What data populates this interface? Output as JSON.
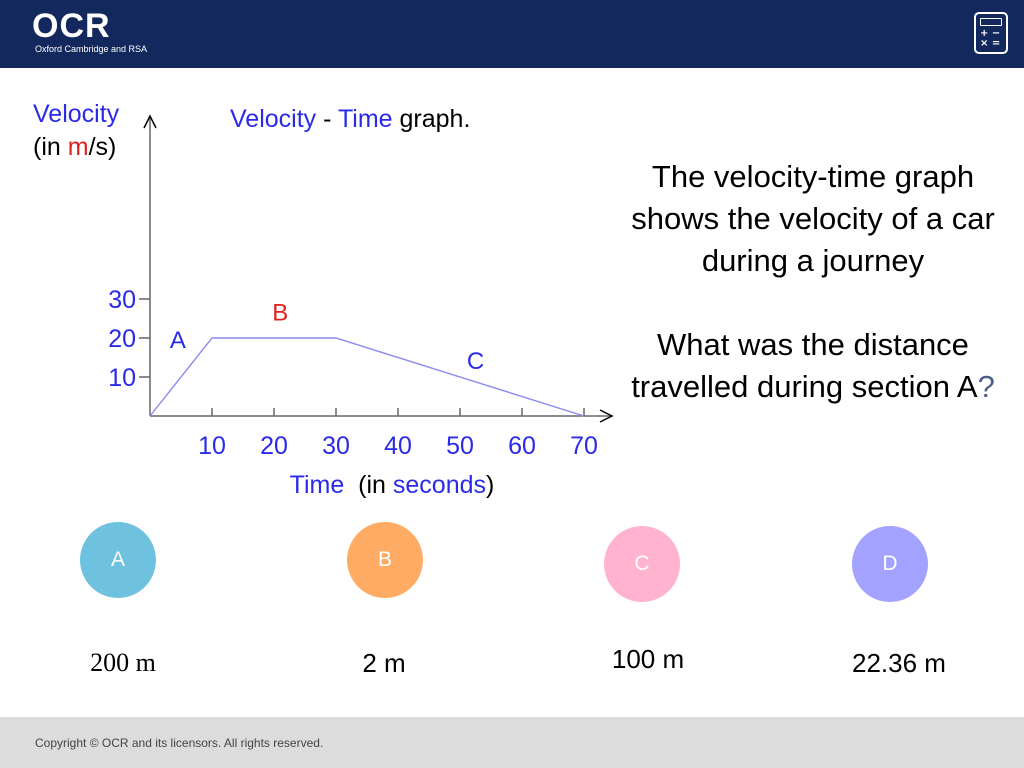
{
  "header": {
    "logo_main": "OCR",
    "logo_sub": "Oxford Cambridge and RSA",
    "calculator_icon": "calculator-icon",
    "calculator_keys": "+ −\n× ="
  },
  "chart_data": {
    "type": "line",
    "title_parts": [
      {
        "text": "Velocity",
        "color": "#2a2ae8"
      },
      {
        "text": " - ",
        "color": "#000000"
      },
      {
        "text": "Time",
        "color": "#2a2ae8"
      },
      {
        "text": " graph.",
        "color": "#000000"
      }
    ],
    "ylabel_line1": "Velocity",
    "ylabel_line2_parts": [
      {
        "text": "(in ",
        "color": "#000000"
      },
      {
        "text": "m",
        "color": "#e02020"
      },
      {
        "text": "/s)",
        "color": "#000000"
      }
    ],
    "xlabel_parts": [
      {
        "text": "Time",
        "color": "#2a2ae8"
      },
      {
        "text": "  (in ",
        "color": "#000000"
      },
      {
        "text": "seconds",
        "color": "#2a2ae8"
      },
      {
        "text": ")",
        "color": "#000000"
      }
    ],
    "xticks": [
      10,
      20,
      30,
      40,
      50,
      60,
      70
    ],
    "yticks": [
      10,
      20,
      30
    ],
    "xlim": [
      0,
      70
    ],
    "ylim": [
      0,
      30
    ],
    "series": [
      {
        "x": [
          0,
          10,
          30,
          70
        ],
        "y": [
          0,
          20,
          20,
          0
        ],
        "color": "#8a8af0"
      }
    ],
    "section_labels": [
      {
        "text": "A",
        "x": 4.5,
        "y": 17.5,
        "color": "#2a2ae8"
      },
      {
        "text": "B",
        "x": 21,
        "y": 24.5,
        "color": "#e02020"
      },
      {
        "text": "C",
        "x": 52.5,
        "y": 12,
        "color": "#2a2ae8"
      }
    ],
    "colors": {
      "axis": "#666666",
      "tick_label": "#2a2ae8"
    }
  },
  "question": {
    "line1": "The velocity-time graph shows the velocity of a car during a journey",
    "line2": "What was the distance travelled during section A",
    "qmark": "?"
  },
  "options": [
    {
      "letter": "A",
      "value": "200 m",
      "color": "#6ec2e0"
    },
    {
      "letter": "B",
      "value": "2 m",
      "color": "#ffab63"
    },
    {
      "letter": "C",
      "value": "100 m",
      "color": "#ffb3cf"
    },
    {
      "letter": "D",
      "value": "22.36 m",
      "color": "#a3a3ff"
    }
  ],
  "footer": {
    "copyright": "Copyright © OCR and its licensors. All rights reserved."
  }
}
